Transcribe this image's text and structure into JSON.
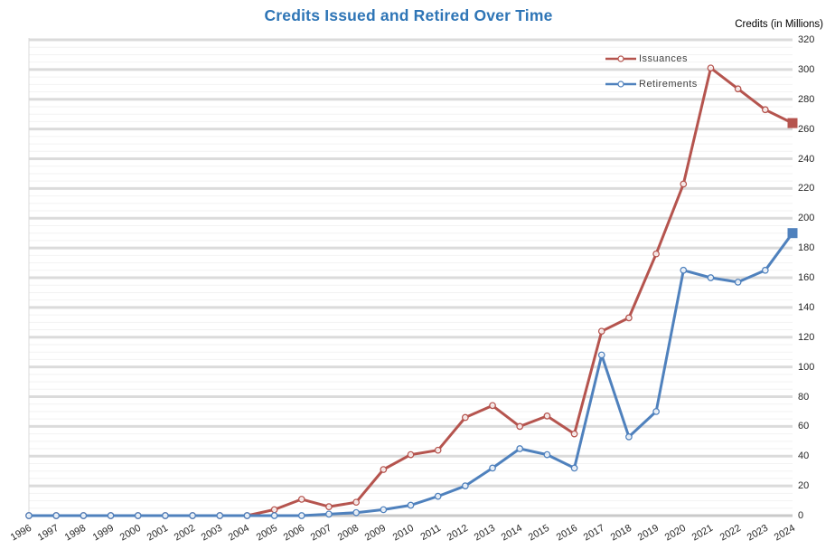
{
  "colors": {
    "title": "#2E75B6",
    "issuances": "#B5544E",
    "retirements": "#4F81BD",
    "gridline_major": "#DBDBDB",
    "gridline_minor": "#F2F2F2",
    "axis_line": "#C9C9C9",
    "axis_text": "#262626",
    "legend_text": "#404040"
  },
  "chart_data": {
    "type": "line",
    "title": "Credits Issued and Retired Over Time",
    "ylabel": "Credits (in Millions)",
    "xlabel": "",
    "ylim": [
      0,
      320
    ],
    "y_tick_step": 20,
    "y_minor_gridline_step": 5,
    "y_ticks": [
      0,
      20,
      40,
      60,
      80,
      100,
      120,
      140,
      160,
      180,
      200,
      220,
      240,
      260,
      280,
      300,
      320
    ],
    "grid": true,
    "legend_position": "top-right",
    "marker": "circle",
    "last_point_marker": "square",
    "x": [
      1996,
      1997,
      1998,
      1999,
      2000,
      2001,
      2002,
      2003,
      2004,
      2005,
      2006,
      2007,
      2008,
      2009,
      2010,
      2011,
      2012,
      2013,
      2014,
      2015,
      2016,
      2017,
      2018,
      2019,
      2020,
      2021,
      2022,
      2023,
      2024
    ],
    "series": [
      {
        "name": "Issuances",
        "color": "#B5544E",
        "values": [
          0,
          0,
          0,
          0,
          0,
          0,
          0,
          0,
          0,
          4,
          11,
          6,
          9,
          31,
          41,
          44,
          66,
          74,
          60,
          67,
          55,
          124,
          133,
          176,
          223,
          301,
          287,
          273,
          264
        ]
      },
      {
        "name": "Retirements",
        "color": "#4F81BD",
        "values": [
          0,
          0,
          0,
          0,
          0,
          0,
          0,
          0,
          0,
          0,
          0,
          1,
          2,
          4,
          7,
          13,
          20,
          32,
          45,
          41,
          32,
          108,
          53,
          70,
          165,
          160,
          157,
          165,
          190
        ]
      }
    ]
  }
}
